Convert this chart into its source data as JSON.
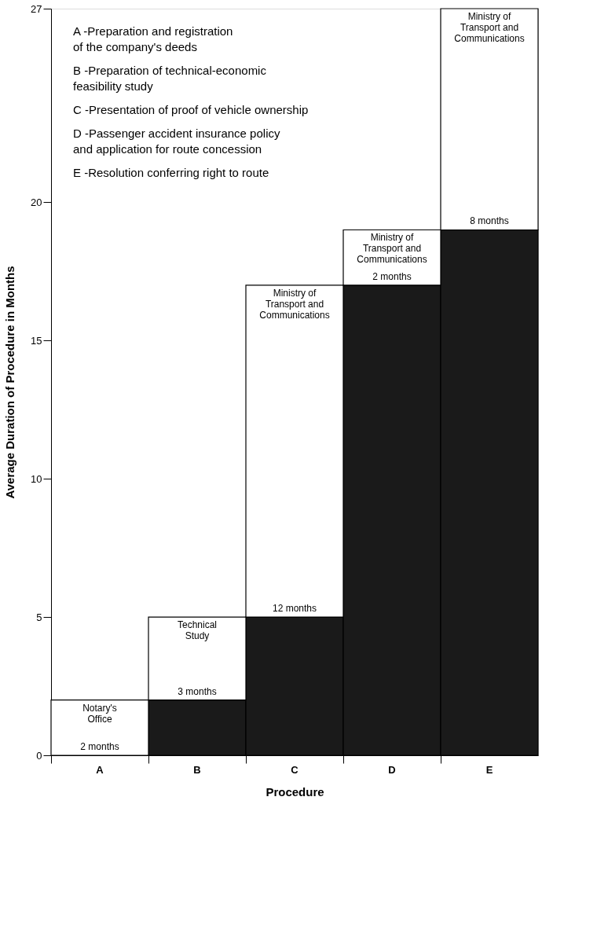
{
  "chart_data": {
    "type": "bar",
    "stacked": true,
    "xlabel": "Procedure",
    "ylabel": "Average Duration of Procedure in Months",
    "categories": [
      "A",
      "B",
      "C",
      "D",
      "E"
    ],
    "series": [
      {
        "color": "#1a1a1a",
        "values": [
          0,
          2,
          5,
          17,
          19
        ]
      },
      {
        "color": "#ffffff",
        "values": [
          2,
          3,
          12,
          2,
          8
        ],
        "value_labels": [
          "2 months",
          "3 months",
          "12 months",
          "2 months",
          "8 months"
        ]
      }
    ],
    "ylim": [
      0,
      27
    ],
    "yticks": [
      0,
      5,
      10,
      15,
      20,
      27
    ],
    "grid": false,
    "legend": false,
    "annotations": [
      "A -Preparation and registration\n      of the company's deeds",
      "B -Preparation of technical-economic\n      feasibility study",
      "C -Presentation of proof of vehicle ownership",
      "D -Passenger accident insurance policy\n      and application for route concession",
      "E -Resolution conferring right to route",
      {
        "text": "Notary's\nOffice",
        "x": "A",
        "y": 2
      },
      {
        "text": "Technical\nStudy",
        "x": "B",
        "y": 5
      },
      {
        "text": "Ministry of\nTransport and\nCommunications",
        "x": "C",
        "y": 17
      },
      {
        "text": "Ministry of\nTransport and\nCommunications",
        "x": "D",
        "y": 19
      },
      {
        "text": "Ministry of\nTransport and\nCommunications",
        "x": "E",
        "y": 27
      }
    ]
  }
}
